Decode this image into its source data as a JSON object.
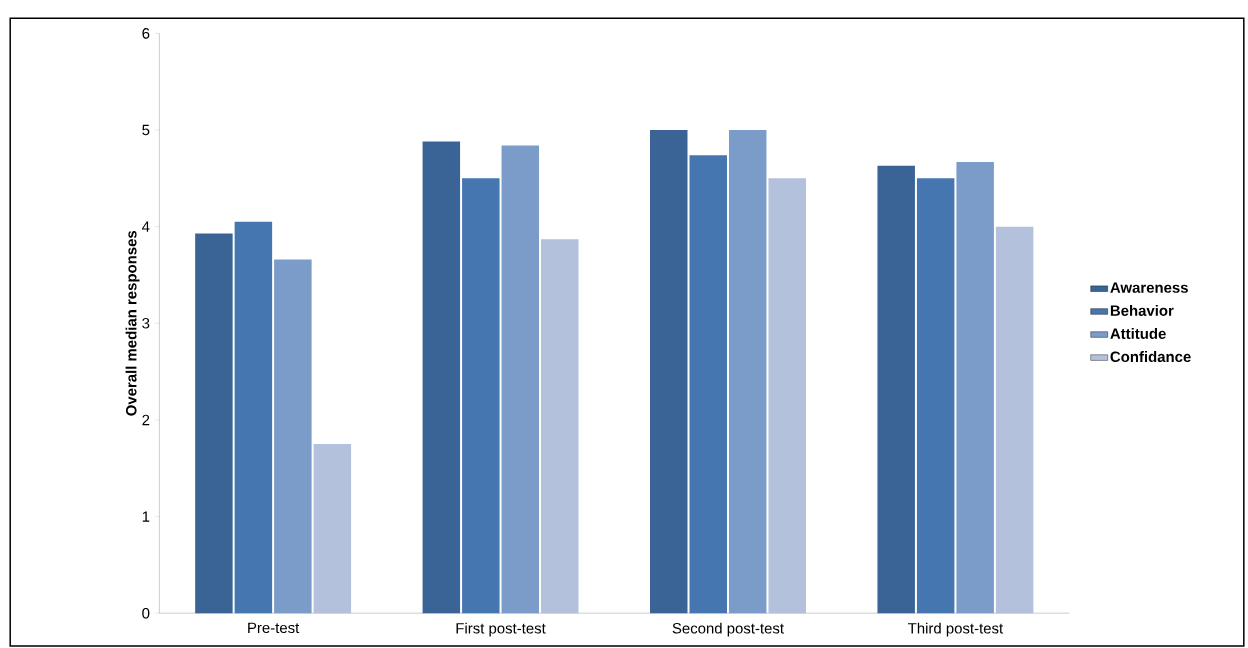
{
  "chart_data": {
    "type": "bar",
    "ylabel": "Overall median responses",
    "categories": [
      "Pre-test",
      "First post-test",
      "Second post-test",
      "Third post-test"
    ],
    "series": [
      {
        "name": "Awareness",
        "color": "#3a6496",
        "values": [
          3.93,
          4.88,
          5.0,
          4.63
        ]
      },
      {
        "name": "Behavior",
        "color": "#4676b0",
        "values": [
          4.05,
          4.5,
          4.74,
          4.5
        ]
      },
      {
        "name": "Attitude",
        "color": "#7b9bc9",
        "values": [
          3.66,
          4.84,
          5.0,
          4.67
        ]
      },
      {
        "name": "Confidance",
        "color": "#b3c1dc",
        "values": [
          1.75,
          3.87,
          4.5,
          4.0
        ]
      }
    ],
    "ylim": [
      0,
      6
    ],
    "yticks": [
      0,
      1,
      2,
      3,
      4,
      5,
      6
    ],
    "grid": false,
    "legend": "right"
  }
}
